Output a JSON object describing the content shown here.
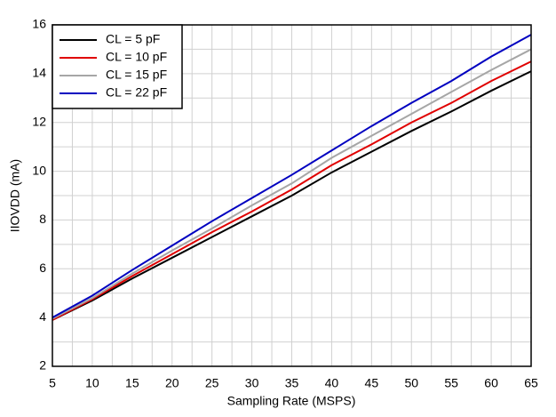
{
  "chart_data": {
    "type": "line",
    "x_label": "Sampling Rate (MSPS)",
    "y_label": "IIOVDD (mA)",
    "x": [
      5,
      10,
      15,
      20,
      25,
      30,
      35,
      40,
      45,
      50,
      55,
      60,
      65
    ],
    "series": [
      {
        "name": "CL = 5 pF",
        "color": "#000000",
        "values": [
          3.9,
          4.7,
          5.6,
          6.45,
          7.3,
          8.15,
          9.0,
          9.95,
          10.8,
          11.65,
          12.45,
          13.3,
          14.1
        ]
      },
      {
        "name": "CL = 10 pF",
        "color": "#e00000",
        "values": [
          3.9,
          4.75,
          5.7,
          6.6,
          7.5,
          8.35,
          9.25,
          10.25,
          11.1,
          12.0,
          12.8,
          13.7,
          14.5
        ]
      },
      {
        "name": "CL = 15 pF",
        "color": "#a6a6a6",
        "values": [
          3.95,
          4.8,
          5.8,
          6.75,
          7.65,
          8.6,
          9.5,
          10.55,
          11.45,
          12.35,
          13.25,
          14.15,
          15.0
        ]
      },
      {
        "name": "CL = 22 pF",
        "color": "#0000c0",
        "values": [
          4.0,
          4.9,
          5.95,
          6.95,
          7.95,
          8.9,
          9.85,
          10.85,
          11.85,
          12.8,
          13.7,
          14.7,
          15.6
        ]
      }
    ],
    "xlim": [
      5,
      65
    ],
    "xticks": [
      5,
      10,
      15,
      20,
      25,
      30,
      35,
      40,
      45,
      50,
      55,
      60,
      65
    ],
    "ylim": [
      2,
      16
    ],
    "yticks": [
      2,
      4,
      6,
      8,
      10,
      12,
      14,
      16
    ],
    "xminorticks": [
      7.5,
      12.5,
      17.5,
      22.5,
      27.5,
      32.5,
      37.5,
      42.5,
      47.5,
      52.5,
      57.5,
      62.5
    ],
    "yminorticks": [
      3,
      5,
      7,
      9,
      11,
      13,
      15
    ],
    "grid": true,
    "legend": "upper left"
  }
}
